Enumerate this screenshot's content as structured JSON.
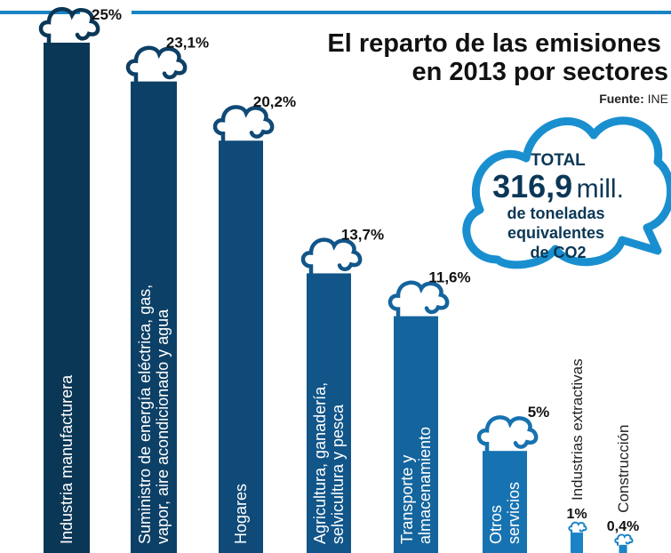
{
  "chart_data": {
    "type": "bar",
    "title": "El reparto de las emisiones en 2013 por sectores",
    "source_label": "Fuente:",
    "source": "INE",
    "total": {
      "label": "TOTAL",
      "value": "316,9",
      "unit": "mill.",
      "note": "de toneladas equivalentes de CO2"
    },
    "categories": [
      "Industria manufacturera",
      "Suministro de energía eléctrica, gas, vapor, aire acondicionado y agua",
      "Hogares",
      "Agricultura, ganadería, selvicultura y pesca",
      "Transporte y almacenamiento",
      "Otros servicios",
      "Industrias extractivas",
      "Construcción"
    ],
    "values": [
      25,
      23.1,
      20.2,
      13.7,
      11.6,
      5,
      1,
      0.4
    ],
    "value_labels": [
      "25%",
      "23,1%",
      "20,2%",
      "13,7%",
      "11,6%",
      "5%",
      "1%",
      "0,4%"
    ],
    "colors": [
      "#0b3756",
      "#0d4066",
      "#0f4a78",
      "#115589",
      "#14649d",
      "#1772b1",
      "#1a84c6",
      "#1a84c6"
    ]
  }
}
